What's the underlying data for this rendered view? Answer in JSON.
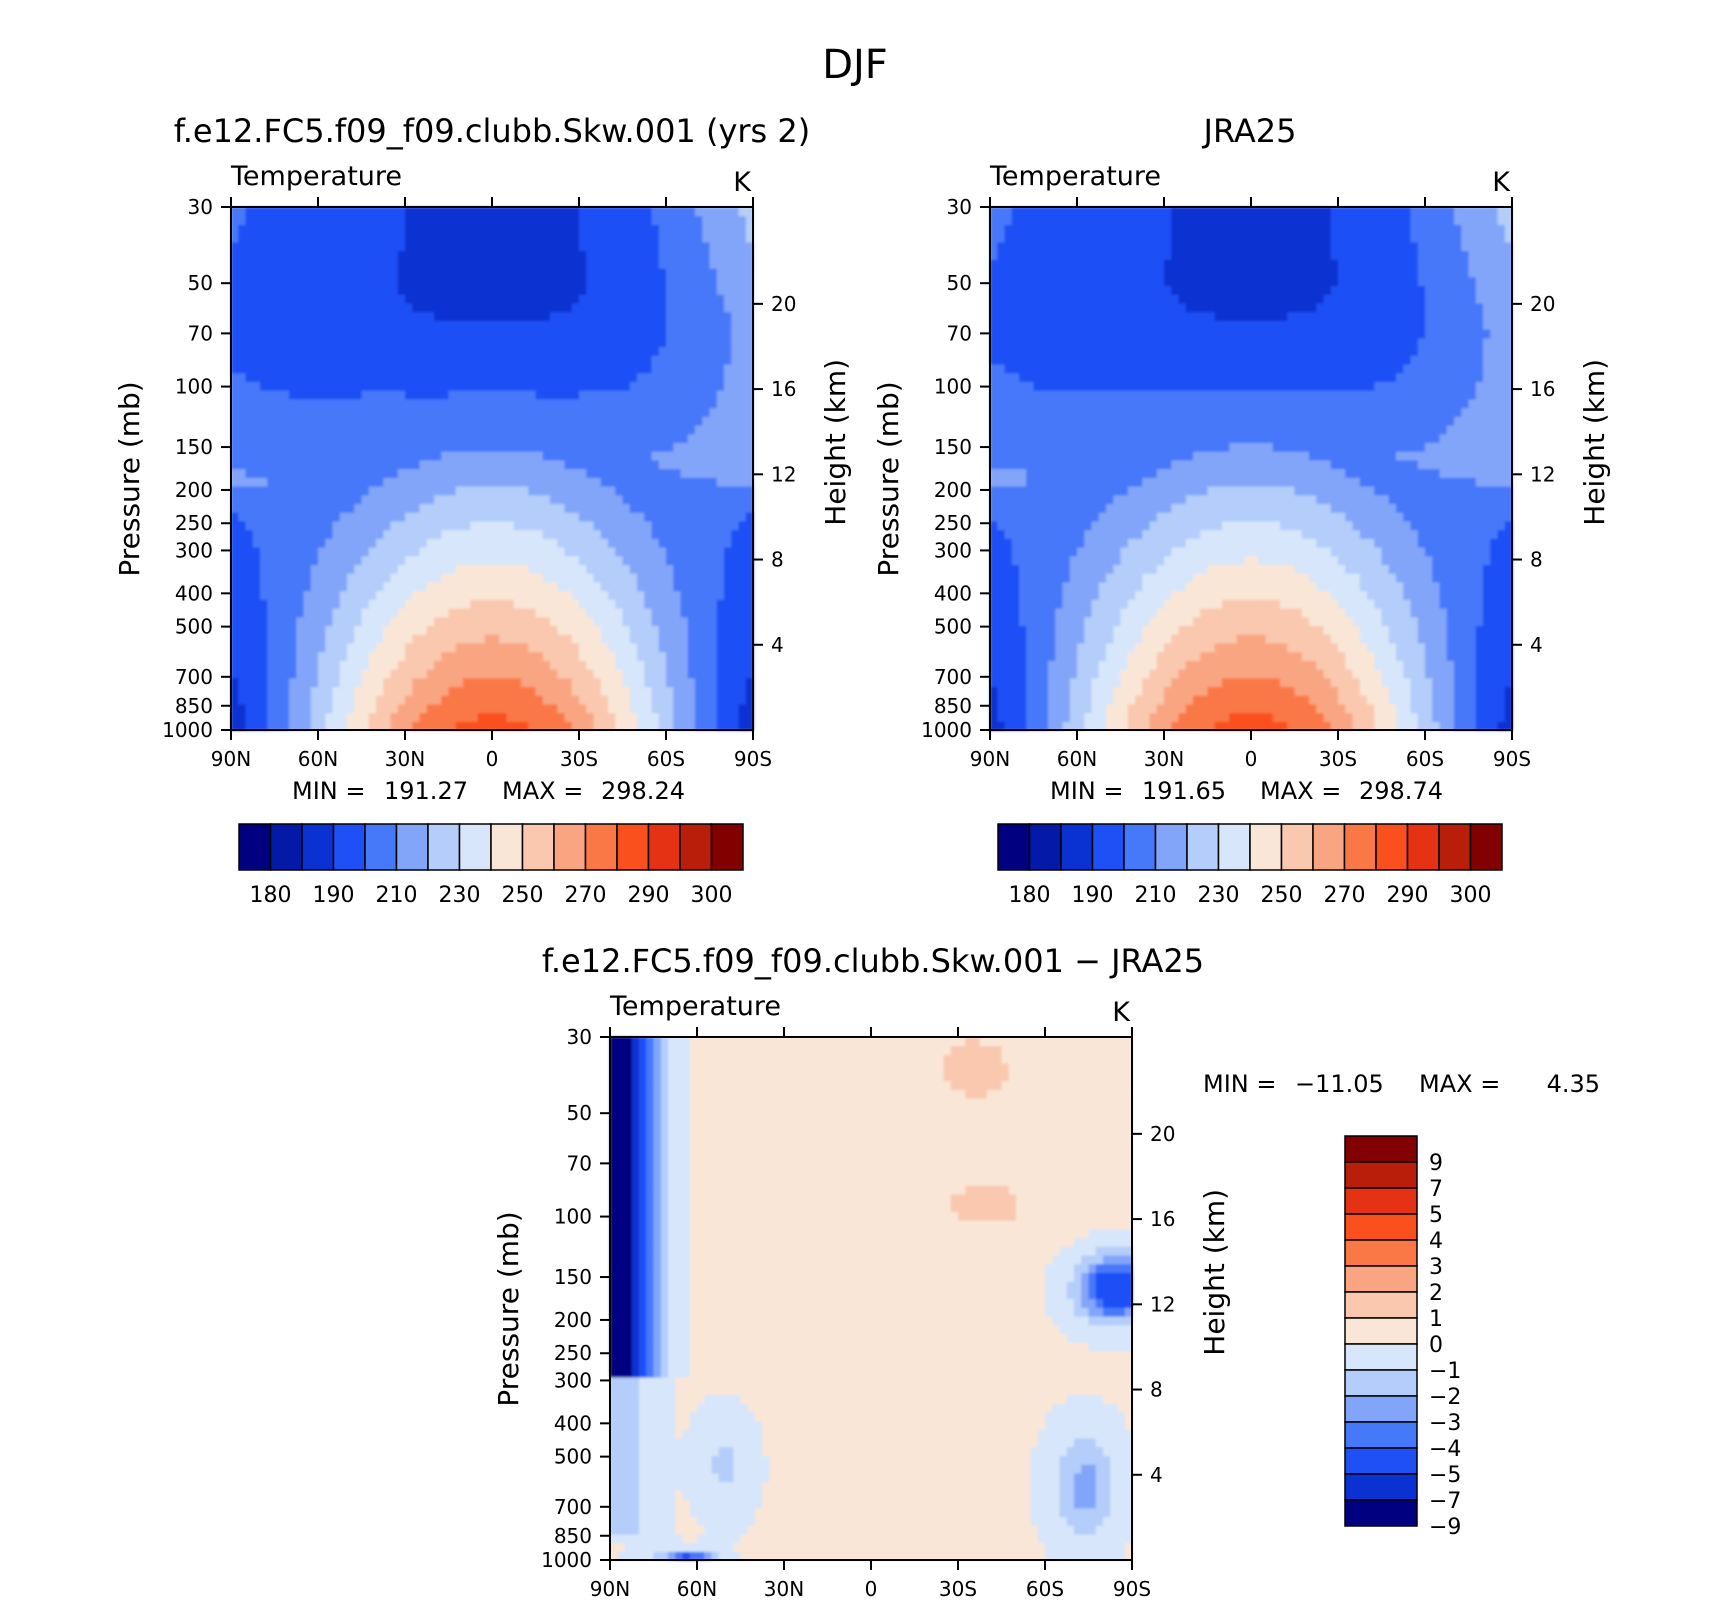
{
  "page_title": "DJF",
  "colors": {
    "abs_levels": [
      "#000080",
      "#0519a8",
      "#0a32d2",
      "#1e50f5",
      "#4678fa",
      "#82a5fa",
      "#b4cdfa",
      "#d7e6fa",
      "#fae6d7",
      "#fac8af",
      "#faa582",
      "#fa7846",
      "#fa501e",
      "#e63214",
      "#b91e0a",
      "#820000"
    ],
    "diff_levels": [
      "#000080",
      "#0a32d2",
      "#1e50f5",
      "#4678fa",
      "#82a5fa",
      "#b4cdfa",
      "#d7e6fa",
      "#fae6d7",
      "#fac8af",
      "#faa582",
      "#fa7846",
      "#fa501e",
      "#e63214",
      "#b91e0a",
      "#820000"
    ]
  },
  "chart_data": [
    {
      "type": "heatmap",
      "id": "model",
      "title": "f.e12.FC5.f09_f09.clubb.Skw.001 (yrs 2)",
      "variable": "Temperature",
      "units": "K",
      "ylabel": "Pressure (mb)",
      "y2label": "Height (km)",
      "x_ticks": [
        "90N",
        "60N",
        "30N",
        "0",
        "30S",
        "60S",
        "90S"
      ],
      "y_ticks": [
        "30",
        "50",
        "70",
        "100",
        "150",
        "200",
        "250",
        "300",
        "400",
        "500",
        "700",
        "850",
        "1000"
      ],
      "y2_ticks": [
        "20",
        "16",
        "12",
        "8",
        "4"
      ],
      "ylim": [
        1000,
        30
      ],
      "stats": {
        "min_label": "MIN =",
        "min": "191.27",
        "max_label": "MAX =",
        "max": "298.24"
      },
      "colorbar_labels": [
        "180",
        "190",
        "210",
        "230",
        "250",
        "270",
        "290",
        "300"
      ]
    },
    {
      "type": "heatmap",
      "id": "obs",
      "title": "JRA25",
      "variable": "Temperature",
      "units": "K",
      "ylabel": "Pressure (mb)",
      "y2label": "Height (km)",
      "x_ticks": [
        "90N",
        "60N",
        "30N",
        "0",
        "30S",
        "60S",
        "90S"
      ],
      "y_ticks": [
        "30",
        "50",
        "70",
        "100",
        "150",
        "200",
        "250",
        "300",
        "400",
        "500",
        "700",
        "850",
        "1000"
      ],
      "y2_ticks": [
        "20",
        "16",
        "12",
        "8",
        "4"
      ],
      "ylim": [
        1000,
        30
      ],
      "stats": {
        "min_label": "MIN =",
        "min": "191.65",
        "max_label": "MAX =",
        "max": "298.74"
      },
      "colorbar_labels": [
        "180",
        "190",
        "210",
        "230",
        "250",
        "270",
        "290",
        "300"
      ]
    },
    {
      "type": "heatmap",
      "id": "diff",
      "title": "f.e12.FC5.f09_f09.clubb.Skw.001 − JRA25",
      "variable": "Temperature",
      "units": "K",
      "ylabel": "Pressure (mb)",
      "y2label": "Height (km)",
      "x_ticks": [
        "90N",
        "60N",
        "30N",
        "0",
        "30S",
        "60S",
        "90S"
      ],
      "y_ticks": [
        "30",
        "50",
        "70",
        "100",
        "150",
        "200",
        "250",
        "300",
        "400",
        "500",
        "700",
        "850",
        "1000"
      ],
      "y2_ticks": [
        "20",
        "16",
        "12",
        "8",
        "4"
      ],
      "ylim": [
        1000,
        30
      ],
      "stats": {
        "min_label": "MIN =",
        "min": "−11.05",
        "max_label": "MAX =",
        "max": "4.35"
      },
      "colorbar_labels": [
        "9",
        "7",
        "5",
        "4",
        "3",
        "2",
        "1",
        "0",
        "−1",
        "−2",
        "−3",
        "−4",
        "−5",
        "−7",
        "−9"
      ]
    }
  ]
}
